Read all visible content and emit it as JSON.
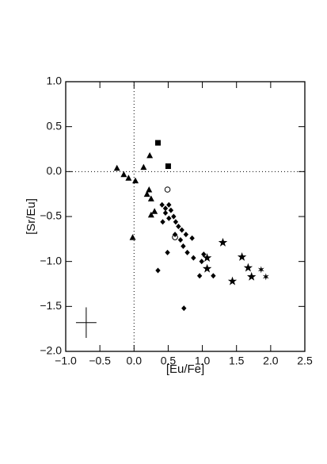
{
  "chart_data": {
    "type": "scatter",
    "xlabel": "[Eu/Fe]",
    "ylabel": "[Sr/Eu]",
    "xlim": [
      -1.0,
      2.5
    ],
    "ylim": [
      -2.0,
      1.0
    ],
    "xticks": [
      {
        "value": -1.0,
        "label": "−1.0"
      },
      {
        "value": -0.5,
        "label": "−0.5"
      },
      {
        "value": 0,
        "label": "0.0"
      },
      {
        "value": 0.5,
        "label": "0.5"
      },
      {
        "value": 1.0,
        "label": "1.0"
      },
      {
        "value": 1.5,
        "label": "1.5"
      },
      {
        "value": 2.0,
        "label": "2.0"
      },
      {
        "value": 2.5,
        "label": "2.5"
      }
    ],
    "yticks": [
      {
        "value": 1.0,
        "label": "1.0"
      },
      {
        "value": 0.5,
        "label": "0.5"
      },
      {
        "value": 0,
        "label": "0.0"
      },
      {
        "value": -0.5,
        "label": "−0.5"
      },
      {
        "value": -1.0,
        "label": "−1.0"
      },
      {
        "value": -1.5,
        "label": "−1.5"
      },
      {
        "value": -2.0,
        "label": "−2.0"
      }
    ],
    "reference_lines": {
      "x": 0,
      "y": 0
    },
    "series": [
      {
        "marker": "triangle",
        "color": "#000000",
        "x": [
          -0.25,
          -0.15,
          -0.08,
          0.02,
          -0.02,
          0.14,
          0.23,
          0.19,
          0.22,
          0.25,
          0.3,
          0.25
        ],
        "y": [
          0.04,
          -0.03,
          -0.07,
          -0.1,
          -0.73,
          0.05,
          0.18,
          -0.25,
          -0.2,
          -0.48,
          -0.44,
          -0.3
        ]
      },
      {
        "marker": "square",
        "color": "#000000",
        "x": [
          0.35,
          0.5
        ],
        "y": [
          0.32,
          0.06
        ]
      },
      {
        "marker": "circle-open",
        "color": "#000000",
        "x": [
          0.49,
          0.6
        ],
        "y": [
          -0.2,
          -0.73
        ]
      },
      {
        "marker": "diamond",
        "color": "#000000",
        "x": [
          0.41,
          0.46,
          0.51,
          0.46,
          0.54,
          0.58,
          0.51,
          0.42,
          0.61,
          0.65,
          0.7,
          0.76,
          0.85,
          0.72,
          0.78,
          0.49,
          0.87,
          0.99,
          0.96,
          1.16,
          1.02,
          0.68,
          0.6,
          0.35,
          0.73
        ],
        "y": [
          -0.37,
          -0.41,
          -0.37,
          -0.46,
          -0.43,
          -0.5,
          -0.52,
          -0.56,
          -0.56,
          -0.61,
          -0.65,
          -0.7,
          -0.74,
          -0.83,
          -0.9,
          -0.9,
          -0.96,
          -1.0,
          -1.16,
          -1.16,
          -0.92,
          -0.76,
          -0.7,
          -1.1,
          -1.52
        ]
      },
      {
        "marker": "star",
        "color": "#000000",
        "x": [
          1.07,
          1.3,
          1.44,
          1.58,
          1.67,
          1.72,
          1.07
        ],
        "y": [
          -1.08,
          -0.79,
          -1.22,
          -0.95,
          -1.07,
          -1.17,
          -0.96
        ]
      },
      {
        "marker": "asterisk",
        "color": "#000000",
        "x": [
          1.86,
          1.93
        ],
        "y": [
          -1.09,
          -1.17
        ]
      }
    ],
    "error_bar": {
      "x": -0.7,
      "y": -1.68,
      "xerr": 0.15,
      "yerr": 0.17
    }
  }
}
